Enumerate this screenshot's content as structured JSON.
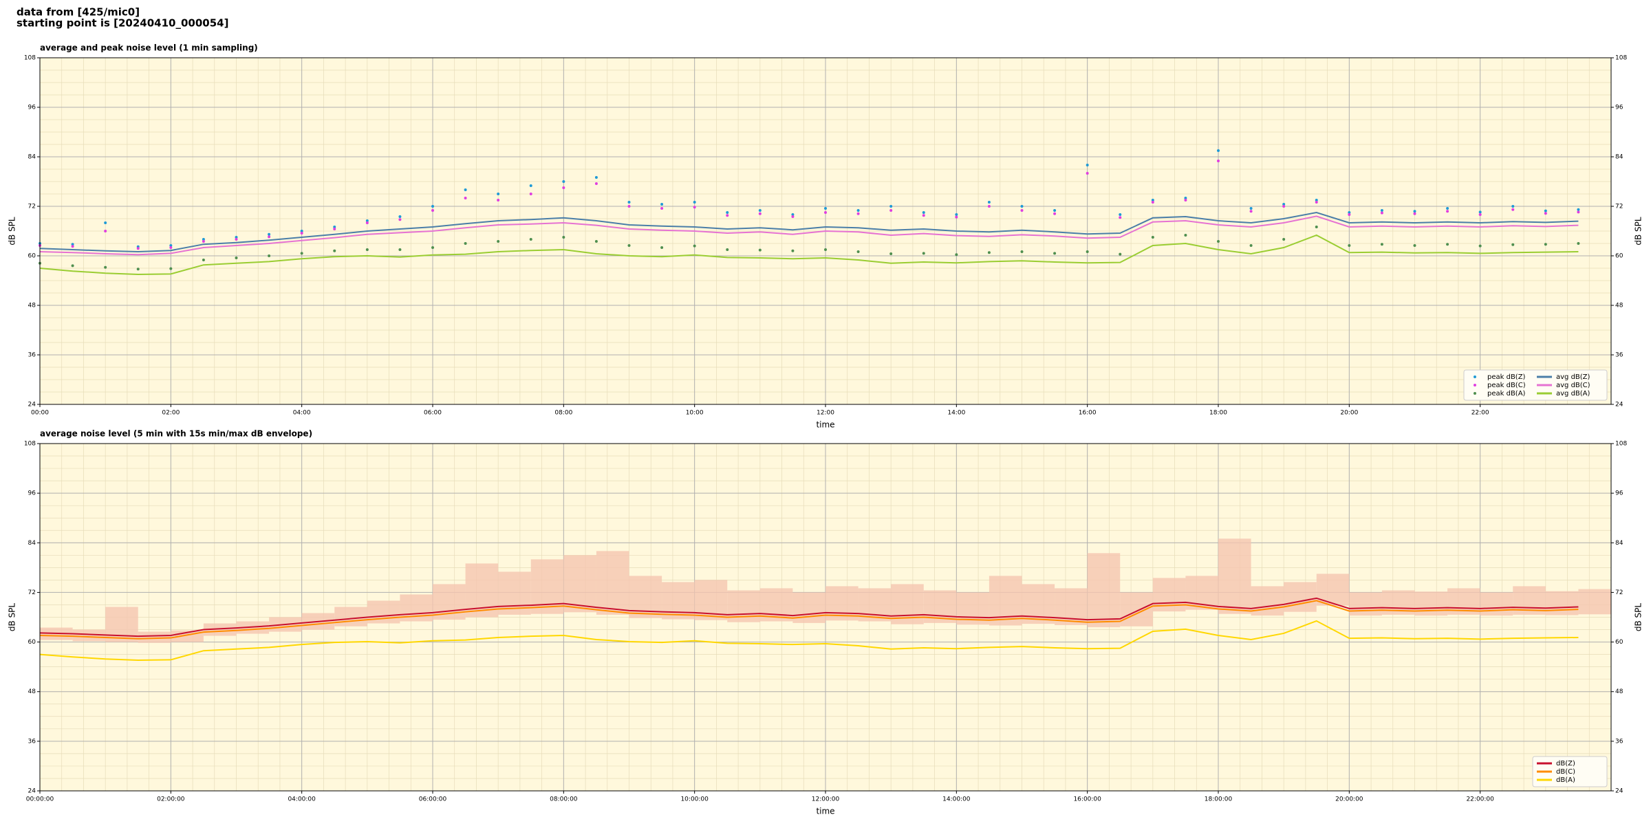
{
  "header": {
    "lines": [
      "data from [425/mic0]",
      "starting point is [20240410_000054]"
    ]
  },
  "chart_data": [
    {
      "type": "line",
      "title": "average and peak noise level (1 min sampling)",
      "xlabel": "time",
      "ylabel": "dB SPL",
      "mirror_y_axis": true,
      "background": "#fff8dc",
      "grid": true,
      "minor_grid_divisions": {
        "x": 6,
        "y": 4
      },
      "legend": "lower right",
      "legend_columns": 2,
      "xlim": [
        0,
        24
      ],
      "ylim": [
        24,
        108
      ],
      "yticks": [
        24,
        36,
        48,
        60,
        72,
        84,
        96,
        108
      ],
      "xticks": [
        {
          "value": 0,
          "label": "00:00"
        },
        {
          "value": 2,
          "label": "02:00"
        },
        {
          "value": 4,
          "label": "04:00"
        },
        {
          "value": 6,
          "label": "06:00"
        },
        {
          "value": 8,
          "label": "08:00"
        },
        {
          "value": 10,
          "label": "10:00"
        },
        {
          "value": 12,
          "label": "12:00"
        },
        {
          "value": 14,
          "label": "14:00"
        },
        {
          "value": 16,
          "label": "16:00"
        },
        {
          "value": 18,
          "label": "18:00"
        },
        {
          "value": 20,
          "label": "20:00"
        },
        {
          "value": 22,
          "label": "22:00"
        }
      ],
      "x": [
        0,
        0.5,
        1,
        1.5,
        2,
        2.5,
        3,
        3.5,
        4,
        4.5,
        5,
        5.5,
        6,
        6.5,
        7,
        7.5,
        8,
        8.5,
        9,
        9.5,
        10,
        10.5,
        11,
        11.5,
        12,
        12.5,
        13,
        13.5,
        14,
        14.5,
        15,
        15.5,
        16,
        16.5,
        17,
        17.5,
        18,
        18.5,
        19,
        19.5,
        20,
        20.5,
        21,
        21.5,
        22,
        22.5,
        23,
        23.5
      ],
      "series": [
        {
          "name": "peak dB(Z)",
          "color": "#1f9ad6",
          "mark": "dot",
          "values": [
            63.0,
            62.8,
            68.0,
            62.2,
            62.5,
            64.0,
            64.5,
            65.2,
            66.0,
            67.0,
            68.5,
            69.5,
            72.0,
            76.0,
            75.0,
            77.0,
            78.0,
            79.0,
            73.0,
            72.5,
            73.0,
            70.5,
            71.0,
            70.0,
            71.5,
            71.0,
            72.0,
            70.5,
            70.0,
            73.0,
            72.0,
            71.0,
            82.0,
            70.0,
            73.5,
            74.0,
            85.5,
            71.5,
            72.5,
            73.5,
            70.5,
            71.0,
            70.8,
            71.5,
            70.6,
            72.0,
            70.9,
            71.2
          ]
        },
        {
          "name": "peak dB(C)",
          "color": "#e03ee0",
          "mark": "dot",
          "values": [
            62.5,
            62.3,
            66.0,
            61.8,
            62.0,
            63.5,
            64.0,
            64.6,
            65.5,
            66.5,
            68.0,
            68.8,
            71.0,
            74.0,
            73.5,
            75.0,
            76.5,
            77.5,
            72.0,
            71.5,
            71.8,
            69.8,
            70.2,
            69.5,
            70.5,
            70.2,
            71.0,
            69.8,
            69.4,
            72.0,
            71.0,
            70.2,
            80.0,
            69.3,
            73.0,
            73.5,
            83.0,
            70.8,
            72.0,
            73.0,
            70.0,
            70.4,
            70.2,
            70.8,
            70.0,
            71.2,
            70.3,
            70.6
          ]
        },
        {
          "name": "peak dB(A)",
          "color": "#4f8f4f",
          "mark": "dot",
          "values": [
            58.2,
            57.6,
            57.2,
            56.8,
            56.9,
            59.0,
            59.5,
            60.0,
            60.6,
            61.2,
            61.5,
            61.5,
            62.0,
            63.0,
            63.5,
            64.0,
            64.5,
            63.5,
            62.5,
            62.0,
            62.4,
            61.5,
            61.4,
            61.2,
            61.5,
            61.0,
            60.5,
            60.6,
            60.3,
            60.8,
            61.0,
            60.6,
            61.0,
            60.4,
            64.5,
            65.0,
            63.5,
            62.5,
            64.0,
            67.0,
            62.5,
            62.8,
            62.5,
            62.8,
            62.4,
            62.7,
            62.8,
            63.0
          ]
        },
        {
          "name": "avg dB(Z)",
          "color": "#4a7ea8",
          "mark": "line",
          "values": [
            61.8,
            61.5,
            61.2,
            61.0,
            61.3,
            62.8,
            63.2,
            63.8,
            64.5,
            65.2,
            66.0,
            66.5,
            67.0,
            67.8,
            68.5,
            68.8,
            69.2,
            68.5,
            67.5,
            67.2,
            67.0,
            66.5,
            66.8,
            66.3,
            67.0,
            66.8,
            66.2,
            66.5,
            66.0,
            65.8,
            66.2,
            65.8,
            65.3,
            65.5,
            69.2,
            69.5,
            68.5,
            68.0,
            69.0,
            70.5,
            68.0,
            68.2,
            68.0,
            68.2,
            68.0,
            68.3,
            68.1,
            68.4
          ]
        },
        {
          "name": "avg dB(C)",
          "color": "#e672d2",
          "mark": "line",
          "values": [
            61.0,
            60.8,
            60.5,
            60.3,
            60.6,
            62.0,
            62.5,
            63.0,
            63.7,
            64.4,
            65.2,
            65.6,
            66.0,
            66.8,
            67.5,
            67.7,
            68.0,
            67.4,
            66.5,
            66.2,
            66.0,
            65.5,
            65.8,
            65.2,
            66.0,
            65.8,
            65.0,
            65.4,
            64.9,
            64.7,
            65.1,
            64.8,
            64.3,
            64.5,
            68.2,
            68.5,
            67.5,
            67.0,
            68.0,
            69.6,
            67.0,
            67.2,
            67.0,
            67.2,
            67.0,
            67.3,
            67.1,
            67.4
          ]
        },
        {
          "name": "avg dB(A)",
          "color": "#9acd32",
          "mark": "line",
          "values": [
            57.0,
            56.3,
            55.8,
            55.5,
            55.6,
            57.8,
            58.2,
            58.6,
            59.3,
            59.8,
            60.0,
            59.7,
            60.2,
            60.4,
            61.0,
            61.3,
            61.5,
            60.5,
            60.0,
            59.8,
            60.2,
            59.6,
            59.5,
            59.3,
            59.5,
            59.0,
            58.2,
            58.5,
            58.3,
            58.6,
            58.8,
            58.5,
            58.3,
            58.4,
            62.5,
            63.0,
            61.5,
            60.5,
            62.0,
            65.0,
            60.8,
            60.9,
            60.7,
            60.8,
            60.6,
            60.8,
            60.9,
            61.0
          ]
        }
      ]
    },
    {
      "type": "line",
      "title": "average noise level (5 min with 15s min/max dB envelope)",
      "xlabel": "time",
      "ylabel": "dB SPL",
      "mirror_y_axis": true,
      "background": "#fff8dc",
      "grid": true,
      "minor_grid_divisions": {
        "x": 6,
        "y": 4
      },
      "legend": "lower right",
      "legend_columns": 1,
      "xlim": [
        0,
        24
      ],
      "ylim": [
        24,
        108
      ],
      "yticks": [
        24,
        36,
        48,
        60,
        72,
        84,
        96,
        108
      ],
      "xticks": [
        {
          "value": 0,
          "label": "00:00:00"
        },
        {
          "value": 2,
          "label": "02:00:00"
        },
        {
          "value": 4,
          "label": "04:00:00"
        },
        {
          "value": 6,
          "label": "06:00:00"
        },
        {
          "value": 8,
          "label": "08:00:00"
        },
        {
          "value": 10,
          "label": "10:00:00"
        },
        {
          "value": 12,
          "label": "12:00:00"
        },
        {
          "value": 14,
          "label": "14:00:00"
        },
        {
          "value": 16,
          "label": "16:00:00"
        },
        {
          "value": 18,
          "label": "18:00:00"
        },
        {
          "value": 20,
          "label": "20:00:00"
        },
        {
          "value": 22,
          "label": "22:00:00"
        }
      ],
      "x": [
        0,
        0.5,
        1,
        1.5,
        2,
        2.5,
        3,
        3.5,
        4,
        4.5,
        5,
        5.5,
        6,
        6.5,
        7,
        7.5,
        8,
        8.5,
        9,
        9.5,
        10,
        10.5,
        11,
        11.5,
        12,
        12.5,
        13,
        13.5,
        14,
        14.5,
        15,
        15.5,
        16,
        16.5,
        17,
        17.5,
        18,
        18.5,
        19,
        19.5,
        20,
        20.5,
        21,
        21.5,
        22,
        22.5,
        23,
        23.5
      ],
      "envelope": {
        "color": "#f5c6b0",
        "min": [
          60.5,
          60.2,
          60.0,
          59.8,
          60.0,
          61.5,
          62.0,
          62.5,
          63.0,
          63.8,
          64.5,
          65.0,
          65.4,
          66.0,
          66.6,
          66.8,
          67.2,
          66.6,
          65.8,
          65.5,
          65.3,
          64.8,
          65.0,
          64.6,
          65.2,
          65.0,
          64.3,
          64.6,
          64.2,
          64.0,
          64.4,
          64.1,
          63.6,
          63.8,
          67.4,
          67.8,
          66.8,
          66.4,
          67.3,
          68.8,
          66.4,
          66.6,
          66.4,
          66.6,
          66.4,
          66.6,
          66.5,
          66.7
        ],
        "max": [
          63.5,
          63.0,
          68.5,
          62.5,
          62.8,
          64.5,
          65.0,
          66.0,
          67.0,
          68.5,
          70.0,
          71.5,
          74.0,
          79.0,
          77.0,
          80.0,
          81.0,
          82.0,
          76.0,
          74.5,
          75.0,
          72.5,
          73.0,
          72.0,
          73.5,
          73.0,
          74.0,
          72.5,
          72.0,
          76.0,
          74.0,
          73.0,
          81.5,
          72.0,
          75.5,
          76.0,
          85.0,
          73.5,
          74.5,
          76.5,
          72.0,
          72.5,
          72.2,
          73.0,
          72.0,
          73.5,
          72.3,
          72.8
        ]
      },
      "series": [
        {
          "name": "dB(Z)",
          "color": "#c8102e",
          "values": [
            62.2,
            62.0,
            61.7,
            61.4,
            61.6,
            63.0,
            63.4,
            63.9,
            64.6,
            65.3,
            66.0,
            66.6,
            67.1,
            67.9,
            68.6,
            68.9,
            69.3,
            68.4,
            67.6,
            67.3,
            67.1,
            66.6,
            66.9,
            66.4,
            67.1,
            66.9,
            66.3,
            66.6,
            66.1,
            65.9,
            66.3,
            65.9,
            65.4,
            65.6,
            69.3,
            69.6,
            68.6,
            68.1,
            69.1,
            70.6,
            68.1,
            68.3,
            68.1,
            68.3,
            68.1,
            68.4,
            68.2,
            68.5
          ]
        },
        {
          "name": "dB(C)",
          "color": "#ff8c00",
          "values": [
            61.6,
            61.4,
            61.1,
            60.8,
            61.0,
            62.4,
            62.8,
            63.3,
            64.0,
            64.7,
            65.4,
            66.0,
            66.5,
            67.3,
            68.0,
            68.3,
            68.7,
            67.8,
            67.0,
            66.7,
            66.5,
            66.0,
            66.3,
            65.8,
            66.5,
            66.3,
            65.7,
            66.0,
            65.5,
            65.3,
            65.7,
            65.3,
            64.8,
            65.0,
            68.7,
            69.0,
            68.0,
            67.5,
            68.5,
            70.0,
            67.5,
            67.7,
            67.5,
            67.7,
            67.5,
            67.8,
            67.6,
            67.9
          ]
        },
        {
          "name": "dB(A)",
          "color": "#ffd700",
          "values": [
            57.0,
            56.4,
            55.9,
            55.6,
            55.7,
            57.9,
            58.3,
            58.7,
            59.4,
            59.9,
            60.1,
            59.8,
            60.3,
            60.5,
            61.1,
            61.4,
            61.6,
            60.6,
            60.1,
            59.9,
            60.3,
            59.7,
            59.6,
            59.4,
            59.6,
            59.1,
            58.3,
            58.6,
            58.4,
            58.7,
            58.9,
            58.6,
            58.4,
            58.5,
            62.6,
            63.1,
            61.6,
            60.6,
            62.1,
            65.1,
            60.9,
            61.0,
            60.8,
            60.9,
            60.7,
            60.9,
            61.0,
            61.1
          ]
        }
      ]
    }
  ]
}
